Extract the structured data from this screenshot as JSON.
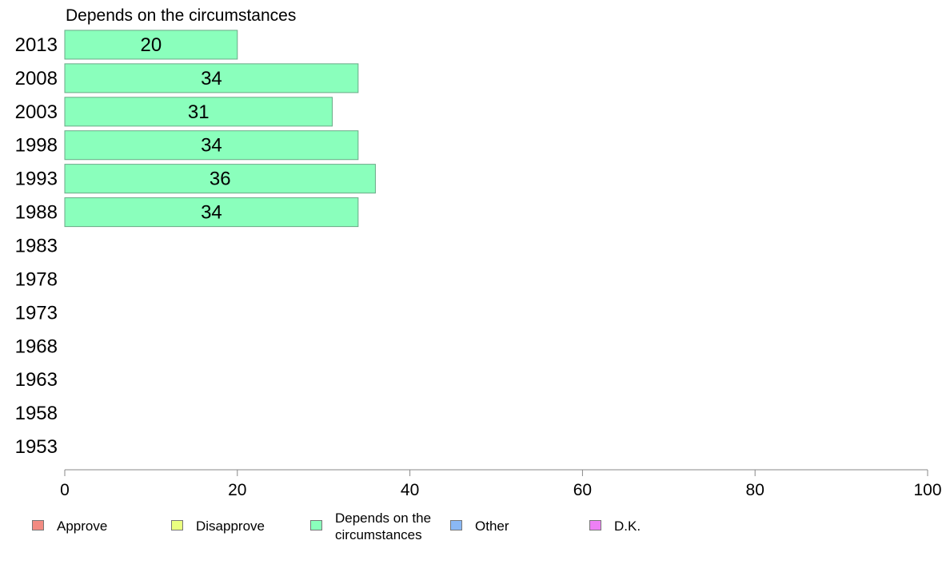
{
  "chart_data": {
    "type": "bar",
    "orientation": "horizontal",
    "title": "Depends on the circumstances",
    "categories": [
      "2013",
      "2008",
      "2003",
      "1998",
      "1993",
      "1988",
      "1983",
      "1978",
      "1973",
      "1968",
      "1963",
      "1958",
      "1953"
    ],
    "series": [
      {
        "name": "Depends on the circumstances",
        "color": "#8affbc",
        "values": [
          20,
          34,
          31,
          34,
          36,
          34,
          null,
          null,
          null,
          null,
          null,
          null,
          null
        ],
        "value_labels": [
          "20",
          "34",
          "31",
          "34",
          "36",
          "34",
          "",
          "",
          "",
          "",
          "",
          "",
          ""
        ]
      }
    ],
    "xlim": [
      0,
      100
    ],
    "xticks": [
      "0",
      "20",
      "40",
      "60",
      "80",
      "100"
    ],
    "grid": false,
    "legend_position": "bottom",
    "legend": [
      {
        "label": "Approve",
        "color": "#f28b82"
      },
      {
        "label": "Disapprove",
        "color": "#eaff80"
      },
      {
        "label": "Depends on the circumstances",
        "color": "#8affbc"
      },
      {
        "label": "Other",
        "color": "#8ab8f5"
      },
      {
        "label": "D.K.",
        "color": "#ee80f5"
      }
    ]
  }
}
